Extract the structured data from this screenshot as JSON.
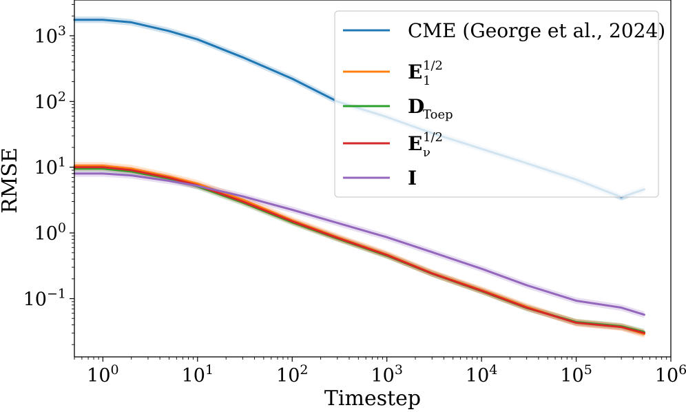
{
  "chart_data": {
    "type": "line",
    "xscale": "log",
    "yscale": "log",
    "xlabel": "Timestep",
    "ylabel": "RMSE",
    "xlim": [
      0.5,
      1000000
    ],
    "ylim": [
      0.013,
      3500
    ],
    "x_ticks": [
      {
        "value": 1,
        "base": "10",
        "exp": "0"
      },
      {
        "value": 10,
        "base": "10",
        "exp": "1"
      },
      {
        "value": 100,
        "base": "10",
        "exp": "2"
      },
      {
        "value": 1000,
        "base": "10",
        "exp": "3"
      },
      {
        "value": 10000,
        "base": "10",
        "exp": "4"
      },
      {
        "value": 100000,
        "base": "10",
        "exp": "5"
      },
      {
        "value": 1000000,
        "base": "10",
        "exp": "6"
      }
    ],
    "y_ticks": [
      {
        "value": 0.1,
        "base": "10",
        "exp": "−1"
      },
      {
        "value": 1,
        "base": "10",
        "exp": "0"
      },
      {
        "value": 10,
        "base": "10",
        "exp": "1"
      },
      {
        "value": 100,
        "base": "10",
        "exp": "2"
      },
      {
        "value": 1000,
        "base": "10",
        "exp": "3"
      }
    ],
    "legend_position": "top-right",
    "x": [
      0.5,
      1,
      2,
      5,
      10,
      30,
      100,
      300,
      1000,
      3000,
      10000,
      30000,
      100000,
      300000,
      524288
    ],
    "series": [
      {
        "name": "CME (George et al., 2024)",
        "label_main": "CME (George et al., 2024)",
        "label_sup": "",
        "label_sub": "",
        "bold": false,
        "color": "#1f77b4",
        "band": 0.12,
        "values": [
          1750,
          1750,
          1600,
          1180,
          880,
          470,
          222,
          100,
          58,
          33,
          19,
          11.5,
          6.5,
          3.5,
          4.6
        ]
      },
      {
        "name": "E_1^{1/2}",
        "label_main": "E",
        "label_sup": "1/2",
        "label_sub": "1",
        "bold": true,
        "color": "#ff7f0e",
        "band": 0.14,
        "values": [
          10.5,
          10.5,
          9.5,
          7.2,
          5.6,
          3.2,
          1.55,
          0.86,
          0.47,
          0.245,
          0.135,
          0.075,
          0.043,
          0.037,
          0.029
        ]
      },
      {
        "name": "D_Toep",
        "label_main": "D",
        "label_sup": "",
        "label_sub": "Toep",
        "bold": true,
        "color": "#2ca02c",
        "band": 0.12,
        "values": [
          9.5,
          9.5,
          8.6,
          6.7,
          5.1,
          2.9,
          1.45,
          0.82,
          0.45,
          0.24,
          0.13,
          0.072,
          0.044,
          0.038,
          0.031
        ]
      },
      {
        "name": "E_ν^{1/2}",
        "label_main": "E",
        "label_sup": "1/2",
        "label_sub": "ν",
        "bold": true,
        "color": "#d62728",
        "band": 0.12,
        "values": [
          10.0,
          10.0,
          9.0,
          6.9,
          5.3,
          3.0,
          1.5,
          0.84,
          0.46,
          0.242,
          0.132,
          0.073,
          0.043,
          0.037,
          0.03
        ]
      },
      {
        "name": "I",
        "label_main": "I",
        "label_sup": "",
        "label_sub": "",
        "bold": true,
        "color": "#9467bd",
        "band": 0.12,
        "values": [
          8.0,
          8.0,
          7.5,
          6.2,
          5.2,
          3.6,
          2.25,
          1.42,
          0.86,
          0.51,
          0.285,
          0.16,
          0.093,
          0.073,
          0.057
        ]
      }
    ]
  }
}
